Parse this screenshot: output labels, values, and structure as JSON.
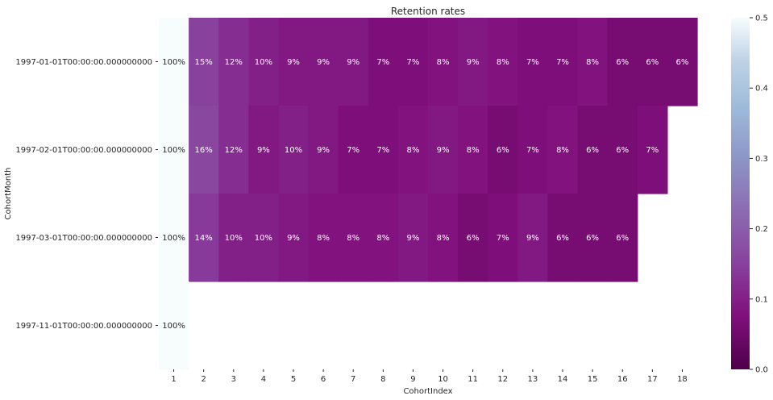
{
  "chart_data": {
    "type": "heatmap",
    "title": "Retention rates",
    "xlabel": "CohortIndex",
    "ylabel": "CohortMonth",
    "x_categories": [
      "1",
      "2",
      "3",
      "4",
      "5",
      "6",
      "7",
      "8",
      "9",
      "10",
      "11",
      "12",
      "13",
      "14",
      "15",
      "16",
      "17",
      "18"
    ],
    "y_categories": [
      "1997-01-01T00:00:00.000000000",
      "1997-02-01T00:00:00.000000000",
      "1997-03-01T00:00:00.000000000",
      "1997-11-01T00:00:00.000000000"
    ],
    "values": [
      [
        1.0,
        0.15,
        0.12,
        0.1,
        0.09,
        0.09,
        0.09,
        0.07,
        0.07,
        0.08,
        0.09,
        0.08,
        0.07,
        0.07,
        0.08,
        0.06,
        0.06,
        0.06
      ],
      [
        1.0,
        0.16,
        0.12,
        0.09,
        0.1,
        0.09,
        0.07,
        0.07,
        0.08,
        0.09,
        0.08,
        0.06,
        0.07,
        0.08,
        0.06,
        0.06,
        0.07,
        null
      ],
      [
        1.0,
        0.14,
        0.1,
        0.1,
        0.09,
        0.08,
        0.08,
        0.08,
        0.09,
        0.08,
        0.06,
        0.07,
        0.09,
        0.06,
        0.06,
        0.06,
        null,
        null
      ],
      [
        1.0,
        null,
        null,
        null,
        null,
        null,
        null,
        null,
        null,
        null,
        null,
        null,
        null,
        null,
        null,
        null,
        null,
        null
      ]
    ],
    "cell_labels": [
      [
        "100%",
        "15%",
        "12%",
        "10%",
        "9%",
        "9%",
        "9%",
        "7%",
        "7%",
        "8%",
        "9%",
        "8%",
        "7%",
        "7%",
        "8%",
        "6%",
        "6%",
        "6%"
      ],
      [
        "100%",
        "16%",
        "12%",
        "9%",
        "10%",
        "9%",
        "7%",
        "7%",
        "8%",
        "9%",
        "8%",
        "6%",
        "7%",
        "8%",
        "6%",
        "6%",
        "7%",
        ""
      ],
      [
        "100%",
        "14%",
        "10%",
        "10%",
        "9%",
        "8%",
        "8%",
        "8%",
        "9%",
        "8%",
        "6%",
        "7%",
        "9%",
        "6%",
        "6%",
        "6%",
        "",
        ""
      ],
      [
        "100%",
        "",
        "",
        "",
        "",
        "",
        "",
        "",
        "",
        "",
        "",
        "",
        "",
        "",
        "",
        "",
        "",
        ""
      ]
    ],
    "vmin": 0.0,
    "vmax": 0.5,
    "colormap": "BuPu_r",
    "colorbar_ticks": [
      "0.0",
      "0.1",
      "0.2",
      "0.3",
      "0.4",
      "0.5"
    ],
    "colors": {
      "high": "#f7fcfd",
      "mid_high": "#bfd3e6",
      "mid": "#8c96c6",
      "mid_low": "#88419d",
      "low": "#4d004b",
      "label_dark": "#262626",
      "label_light": "#ffffff"
    }
  }
}
